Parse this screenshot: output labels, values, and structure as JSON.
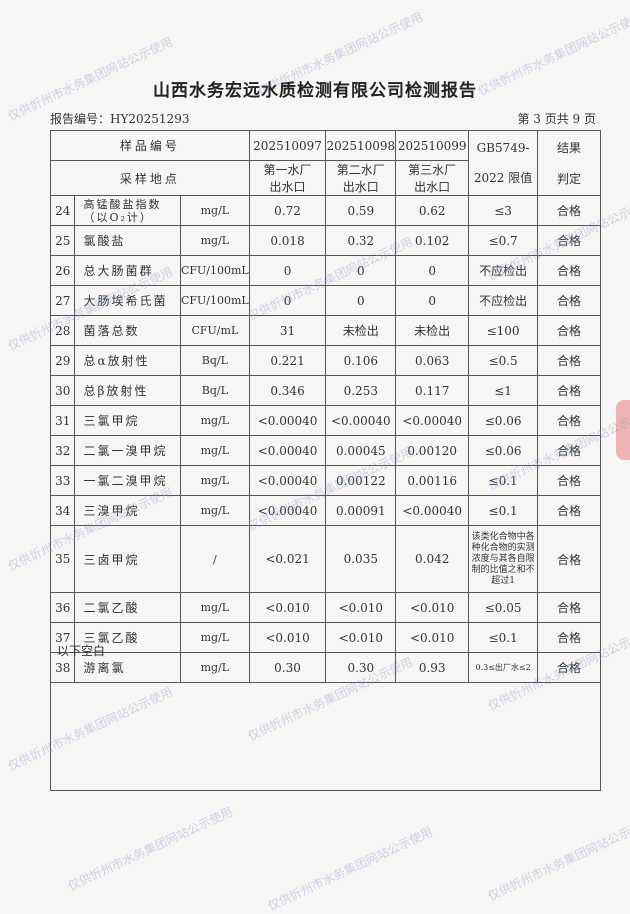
{
  "title": "山西水务宏远水质检测有限公司检测报告",
  "report_no": "报告编号：HY20251293",
  "page": "第 3 页共 9 页",
  "header": {
    "sample_no_label": "样品编号",
    "location_label": "采样地点",
    "samples": [
      "202510097",
      "202510098",
      "202510099"
    ],
    "locations": [
      [
        "第一水厂",
        "出水口"
      ],
      [
        "第二水厂",
        "出水口"
      ],
      [
        "第三水厂",
        "出水口"
      ]
    ],
    "limit_label": [
      "GB5749-",
      "2022 限值"
    ],
    "result_label": [
      "结果",
      "判定"
    ]
  },
  "rows": [
    {
      "no": "24",
      "name": "高锰酸盐指数（以O₂计）",
      "unit": "mg/L",
      "v": [
        "0.72",
        "0.59",
        "0.62"
      ],
      "limit": "≤3",
      "result": "合格"
    },
    {
      "no": "25",
      "name": "氯酸盐",
      "unit": "mg/L",
      "v": [
        "0.018",
        "0.32",
        "0.102"
      ],
      "limit": "≤0.7",
      "result": "合格"
    },
    {
      "no": "26",
      "name": "总大肠菌群",
      "unit": "CFU/100mL",
      "v": [
        "0",
        "0",
        "0"
      ],
      "limit": "不应检出",
      "result": "合格"
    },
    {
      "no": "27",
      "name": "大肠埃希氏菌",
      "unit": "CFU/100mL",
      "v": [
        "0",
        "0",
        "0"
      ],
      "limit": "不应检出",
      "result": "合格"
    },
    {
      "no": "28",
      "name": "菌落总数",
      "unit": "CFU/mL",
      "v": [
        "31",
        "未检出",
        "未检出"
      ],
      "limit": "≤100",
      "result": "合格"
    },
    {
      "no": "29",
      "name": "总α放射性",
      "unit": "Bq/L",
      "v": [
        "0.221",
        "0.106",
        "0.063"
      ],
      "limit": "≤0.5",
      "result": "合格"
    },
    {
      "no": "30",
      "name": "总β放射性",
      "unit": "Bq/L",
      "v": [
        "0.346",
        "0.253",
        "0.117"
      ],
      "limit": "≤1",
      "result": "合格"
    },
    {
      "no": "31",
      "name": "三氯甲烷",
      "unit": "mg/L",
      "v": [
        "<0.00040",
        "<0.00040",
        "<0.00040"
      ],
      "limit": "≤0.06",
      "result": "合格"
    },
    {
      "no": "32",
      "name": "二氯一溴甲烷",
      "unit": "mg/L",
      "v": [
        "<0.00040",
        "0.00045",
        "0.00120"
      ],
      "limit": "≤0.06",
      "result": "合格"
    },
    {
      "no": "33",
      "name": "一氯二溴甲烷",
      "unit": "mg/L",
      "v": [
        "<0.00040",
        "0.00122",
        "0.00116"
      ],
      "limit": "≤0.1",
      "result": "合格"
    },
    {
      "no": "34",
      "name": "三溴甲烷",
      "unit": "mg/L",
      "v": [
        "<0.00040",
        "0.00091",
        "<0.00040"
      ],
      "limit": "≤0.1",
      "result": "合格"
    },
    {
      "no": "35",
      "name": "三卤甲烷",
      "unit": "/",
      "v": [
        "<0.021",
        "0.035",
        "0.042"
      ],
      "limit": "该类化合物中各种化合物的实测浓度与其各自限制的比值之和不超过1",
      "result": "合格"
    },
    {
      "no": "36",
      "name": "二氯乙酸",
      "unit": "mg/L",
      "v": [
        "<0.010",
        "<0.010",
        "<0.010"
      ],
      "limit": "≤0.05",
      "result": "合格"
    },
    {
      "no": "37",
      "name": "三氯乙酸",
      "unit": "mg/L",
      "v": [
        "<0.010",
        "<0.010",
        "<0.010"
      ],
      "limit": "≤0.1",
      "result": "合格"
    },
    {
      "no": "38",
      "name": "游离氯",
      "unit": "mg/L",
      "v": [
        "0.30",
        "0.30",
        "0.93"
      ],
      "limit": "0.3≤出厂水≤2",
      "result": "合格"
    }
  ],
  "blank_note": "以下空白",
  "watermark": "仅供忻州市水务集团网站公示使用",
  "colors": {
    "watermark": "#8c9cd0",
    "stamp": "#dc3c3c"
  }
}
